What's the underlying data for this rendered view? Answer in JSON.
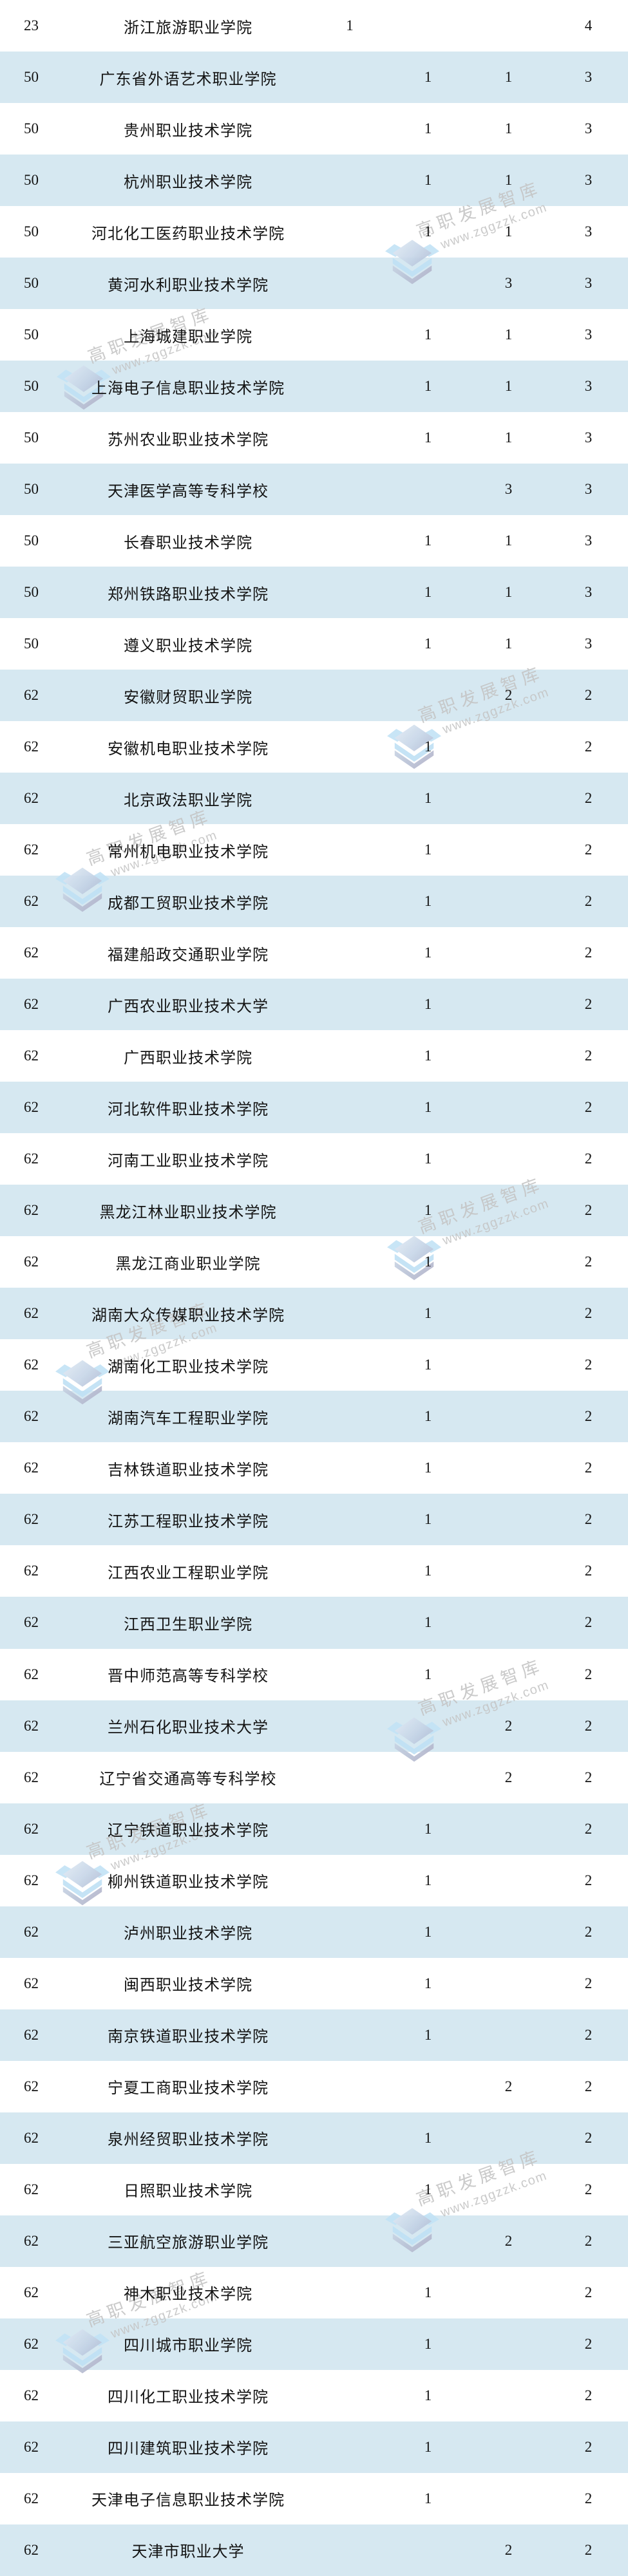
{
  "watermark": {
    "brand": "高职发展智库",
    "url": "www.zggzzk.com"
  },
  "colors": {
    "row_alt_background": "#d6e8f1",
    "text": "#141414",
    "watermark_text": "#c5c5c5",
    "watermark_logo_blue": "#bfe1f5"
  },
  "table": {
    "rows": [
      {
        "rank": "23",
        "name": "浙江旅游职业学院",
        "values": [
          "1",
          "",
          "",
          "4"
        ]
      },
      {
        "rank": "50",
        "name": "广东省外语艺术职业学院",
        "values": [
          "",
          "1",
          "1",
          "3"
        ]
      },
      {
        "rank": "50",
        "name": "贵州职业技术学院",
        "values": [
          "",
          "1",
          "1",
          "3"
        ]
      },
      {
        "rank": "50",
        "name": "杭州职业技术学院",
        "values": [
          "",
          "1",
          "1",
          "3"
        ]
      },
      {
        "rank": "50",
        "name": "河北化工医药职业技术学院",
        "values": [
          "",
          "1",
          "1",
          "3"
        ]
      },
      {
        "rank": "50",
        "name": "黄河水利职业技术学院",
        "values": [
          "",
          "",
          "3",
          "3"
        ]
      },
      {
        "rank": "50",
        "name": "上海城建职业学院",
        "values": [
          "",
          "1",
          "1",
          "3"
        ]
      },
      {
        "rank": "50",
        "name": "上海电子信息职业技术学院",
        "values": [
          "",
          "1",
          "1",
          "3"
        ]
      },
      {
        "rank": "50",
        "name": "苏州农业职业技术学院",
        "values": [
          "",
          "1",
          "1",
          "3"
        ]
      },
      {
        "rank": "50",
        "name": "天津医学高等专科学校",
        "values": [
          "",
          "",
          "3",
          "3"
        ]
      },
      {
        "rank": "50",
        "name": "长春职业技术学院",
        "values": [
          "",
          "1",
          "1",
          "3"
        ]
      },
      {
        "rank": "50",
        "name": "郑州铁路职业技术学院",
        "values": [
          "",
          "1",
          "1",
          "3"
        ]
      },
      {
        "rank": "50",
        "name": "遵义职业技术学院",
        "values": [
          "",
          "1",
          "1",
          "3"
        ]
      },
      {
        "rank": "62",
        "name": "安徽财贸职业学院",
        "values": [
          "",
          "",
          "2",
          "2"
        ]
      },
      {
        "rank": "62",
        "name": "安徽机电职业技术学院",
        "values": [
          "",
          "1",
          "",
          "2"
        ]
      },
      {
        "rank": "62",
        "name": "北京政法职业学院",
        "values": [
          "",
          "1",
          "",
          "2"
        ]
      },
      {
        "rank": "62",
        "name": "常州机电职业技术学院",
        "values": [
          "",
          "1",
          "",
          "2"
        ]
      },
      {
        "rank": "62",
        "name": "成都工贸职业技术学院",
        "values": [
          "",
          "1",
          "",
          "2"
        ]
      },
      {
        "rank": "62",
        "name": "福建船政交通职业学院",
        "values": [
          "",
          "1",
          "",
          "2"
        ]
      },
      {
        "rank": "62",
        "name": "广西农业职业技术大学",
        "values": [
          "",
          "1",
          "",
          "2"
        ]
      },
      {
        "rank": "62",
        "name": "广西职业技术学院",
        "values": [
          "",
          "1",
          "",
          "2"
        ]
      },
      {
        "rank": "62",
        "name": "河北软件职业技术学院",
        "values": [
          "",
          "1",
          "",
          "2"
        ]
      },
      {
        "rank": "62",
        "name": "河南工业职业技术学院",
        "values": [
          "",
          "1",
          "",
          "2"
        ]
      },
      {
        "rank": "62",
        "name": "黑龙江林业职业技术学院",
        "values": [
          "",
          "1",
          "",
          "2"
        ]
      },
      {
        "rank": "62",
        "name": "黑龙江商业职业学院",
        "values": [
          "",
          "1",
          "",
          "2"
        ]
      },
      {
        "rank": "62",
        "name": "湖南大众传媒职业技术学院",
        "values": [
          "",
          "1",
          "",
          "2"
        ]
      },
      {
        "rank": "62",
        "name": "湖南化工职业技术学院",
        "values": [
          "",
          "1",
          "",
          "2"
        ]
      },
      {
        "rank": "62",
        "name": "湖南汽车工程职业学院",
        "values": [
          "",
          "1",
          "",
          "2"
        ]
      },
      {
        "rank": "62",
        "name": "吉林铁道职业技术学院",
        "values": [
          "",
          "1",
          "",
          "2"
        ]
      },
      {
        "rank": "62",
        "name": "江苏工程职业技术学院",
        "values": [
          "",
          "1",
          "",
          "2"
        ]
      },
      {
        "rank": "62",
        "name": "江西农业工程职业学院",
        "values": [
          "",
          "1",
          "",
          "2"
        ]
      },
      {
        "rank": "62",
        "name": "江西卫生职业学院",
        "values": [
          "",
          "1",
          "",
          "2"
        ]
      },
      {
        "rank": "62",
        "name": "晋中师范高等专科学校",
        "values": [
          "",
          "1",
          "",
          "2"
        ]
      },
      {
        "rank": "62",
        "name": "兰州石化职业技术大学",
        "values": [
          "",
          "",
          "2",
          "2"
        ]
      },
      {
        "rank": "62",
        "name": "辽宁省交通高等专科学校",
        "values": [
          "",
          "",
          "2",
          "2"
        ]
      },
      {
        "rank": "62",
        "name": "辽宁铁道职业技术学院",
        "values": [
          "",
          "1",
          "",
          "2"
        ]
      },
      {
        "rank": "62",
        "name": "柳州铁道职业技术学院",
        "values": [
          "",
          "1",
          "",
          "2"
        ]
      },
      {
        "rank": "62",
        "name": "泸州职业技术学院",
        "values": [
          "",
          "1",
          "",
          "2"
        ]
      },
      {
        "rank": "62",
        "name": "闽西职业技术学院",
        "values": [
          "",
          "1",
          "",
          "2"
        ]
      },
      {
        "rank": "62",
        "name": "南京铁道职业技术学院",
        "values": [
          "",
          "1",
          "",
          "2"
        ]
      },
      {
        "rank": "62",
        "name": "宁夏工商职业技术学院",
        "values": [
          "",
          "",
          "2",
          "2"
        ]
      },
      {
        "rank": "62",
        "name": "泉州经贸职业技术学院",
        "values": [
          "",
          "1",
          "",
          "2"
        ]
      },
      {
        "rank": "62",
        "name": "日照职业技术学院",
        "values": [
          "",
          "1",
          "",
          "2"
        ]
      },
      {
        "rank": "62",
        "name": "三亚航空旅游职业学院",
        "values": [
          "",
          "",
          "2",
          "2"
        ]
      },
      {
        "rank": "62",
        "name": "神木职业技术学院",
        "values": [
          "",
          "1",
          "",
          "2"
        ]
      },
      {
        "rank": "62",
        "name": "四川城市职业学院",
        "values": [
          "",
          "1",
          "",
          "2"
        ]
      },
      {
        "rank": "62",
        "name": "四川化工职业技术学院",
        "values": [
          "",
          "1",
          "",
          "2"
        ]
      },
      {
        "rank": "62",
        "name": "四川建筑职业技术学院",
        "values": [
          "",
          "1",
          "",
          "2"
        ]
      },
      {
        "rank": "62",
        "name": "天津电子信息职业技术学院",
        "values": [
          "",
          "1",
          "",
          "2"
        ]
      },
      {
        "rank": "62",
        "name": "天津市职业大学",
        "values": [
          "",
          "",
          "2",
          "2"
        ]
      }
    ]
  }
}
